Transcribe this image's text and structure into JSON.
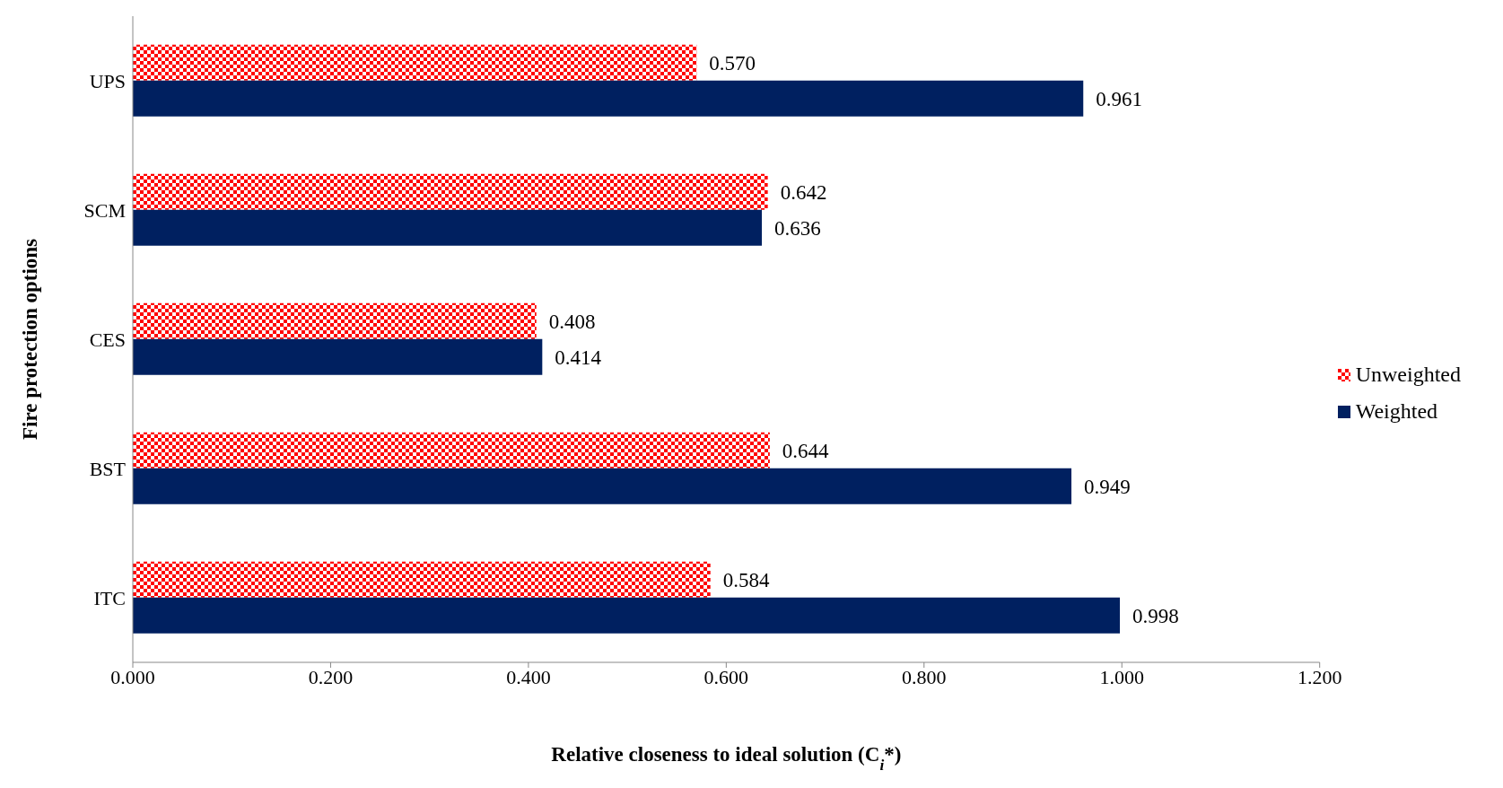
{
  "chart_data": {
    "type": "bar",
    "orientation": "horizontal",
    "xlabel": "Relative closeness to ideal solution (C$_{i}$*)",
    "ylabel": "Fire protection options",
    "categories": [
      "UPS",
      "SCM",
      "CES",
      "BST",
      "ITC"
    ],
    "series": [
      {
        "name": "Unweighted",
        "color": "#ff0000",
        "values": [
          0.57,
          0.642,
          0.408,
          0.644,
          0.584
        ],
        "value_labels": [
          "0.570",
          "0.642",
          "0.408",
          "0.644",
          "0.584"
        ]
      },
      {
        "name": "Weighted",
        "color": "#002060",
        "values": [
          0.961,
          0.636,
          0.414,
          0.949,
          0.998
        ],
        "value_labels": [
          "0.961",
          "0.636",
          "0.414",
          "0.949",
          "0.998"
        ]
      }
    ],
    "xlim": [
      0,
      1.2
    ],
    "xticks": [
      {
        "value": 0,
        "label": "0.000"
      },
      {
        "value": 0.2,
        "label": "0.200"
      },
      {
        "value": 0.4,
        "label": "0.400"
      },
      {
        "value": 0.6,
        "label": "0.600"
      },
      {
        "value": 0.8,
        "label": "0.800"
      },
      {
        "value": 1.0,
        "label": "1.000"
      },
      {
        "value": 1.2,
        "label": "1.200"
      }
    ],
    "grid": false,
    "legend": "right"
  }
}
